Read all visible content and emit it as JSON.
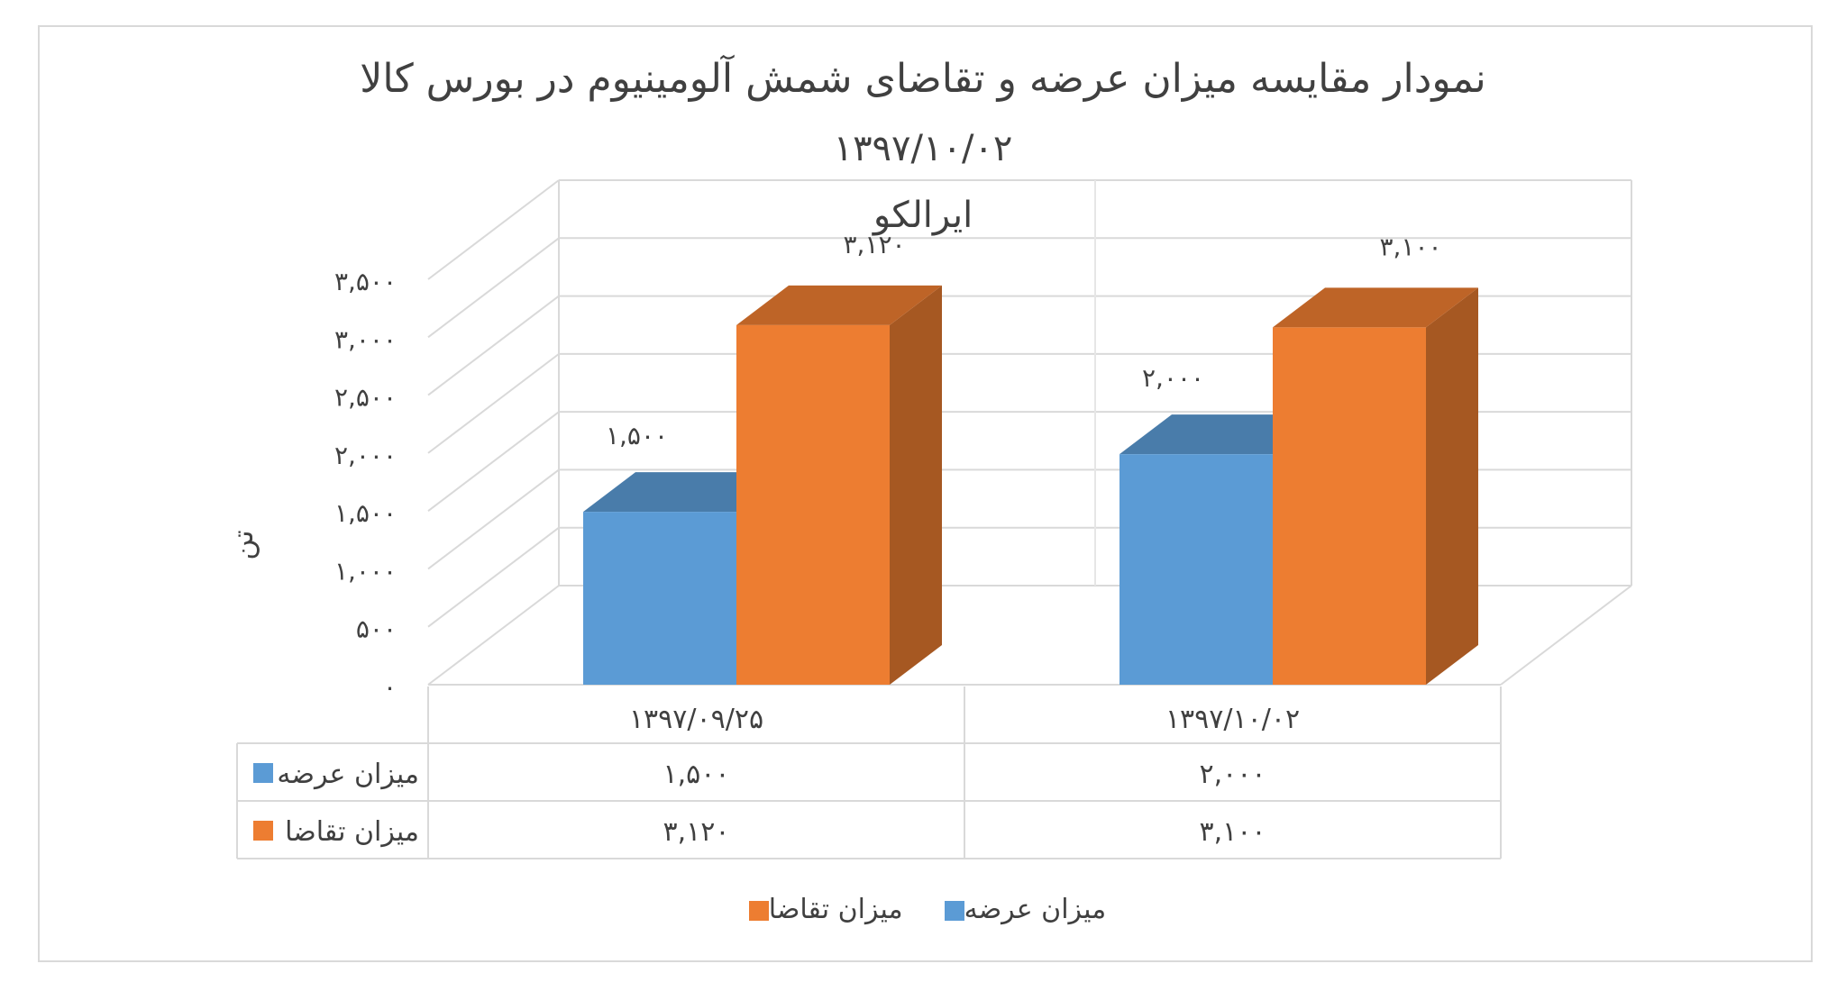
{
  "chart_data": {
    "type": "bar",
    "title": "نمودار مقایسه میزان عرضه و تقاضای شمش آلومینیوم در بورس کالا",
    "subtitle": "۱۳۹۷/۱۰/۰۲",
    "subtitle2": "ایرالکو",
    "ylabel": "تن",
    "ylim": [
      0,
      3500
    ],
    "yticks": [
      0,
      500,
      1000,
      1500,
      2000,
      2500,
      3000,
      3500
    ],
    "ytick_labels": [
      "۰",
      "۵۰۰",
      "۱,۰۰۰",
      "۱,۵۰۰",
      "۲,۰۰۰",
      "۲,۵۰۰",
      "۳,۰۰۰",
      "۳,۵۰۰"
    ],
    "categories": [
      "۱۳۹۷/۰۹/۲۵",
      "۱۳۹۷/۱۰/۰۲"
    ],
    "series": [
      {
        "name": "میزان عرضه",
        "values": [
          1500,
          2000
        ],
        "labels": [
          "۱,۵۰۰",
          "۲,۰۰۰"
        ],
        "color": "#5b9bd5"
      },
      {
        "name": "میزان تقاضا",
        "values": [
          3120,
          3100
        ],
        "labels": [
          "۳,۱۲۰",
          "۳,۱۰۰"
        ],
        "color": "#ed7d31"
      }
    ],
    "grid": true,
    "data_table": true,
    "legend": "bottom",
    "style": "3d-column"
  }
}
